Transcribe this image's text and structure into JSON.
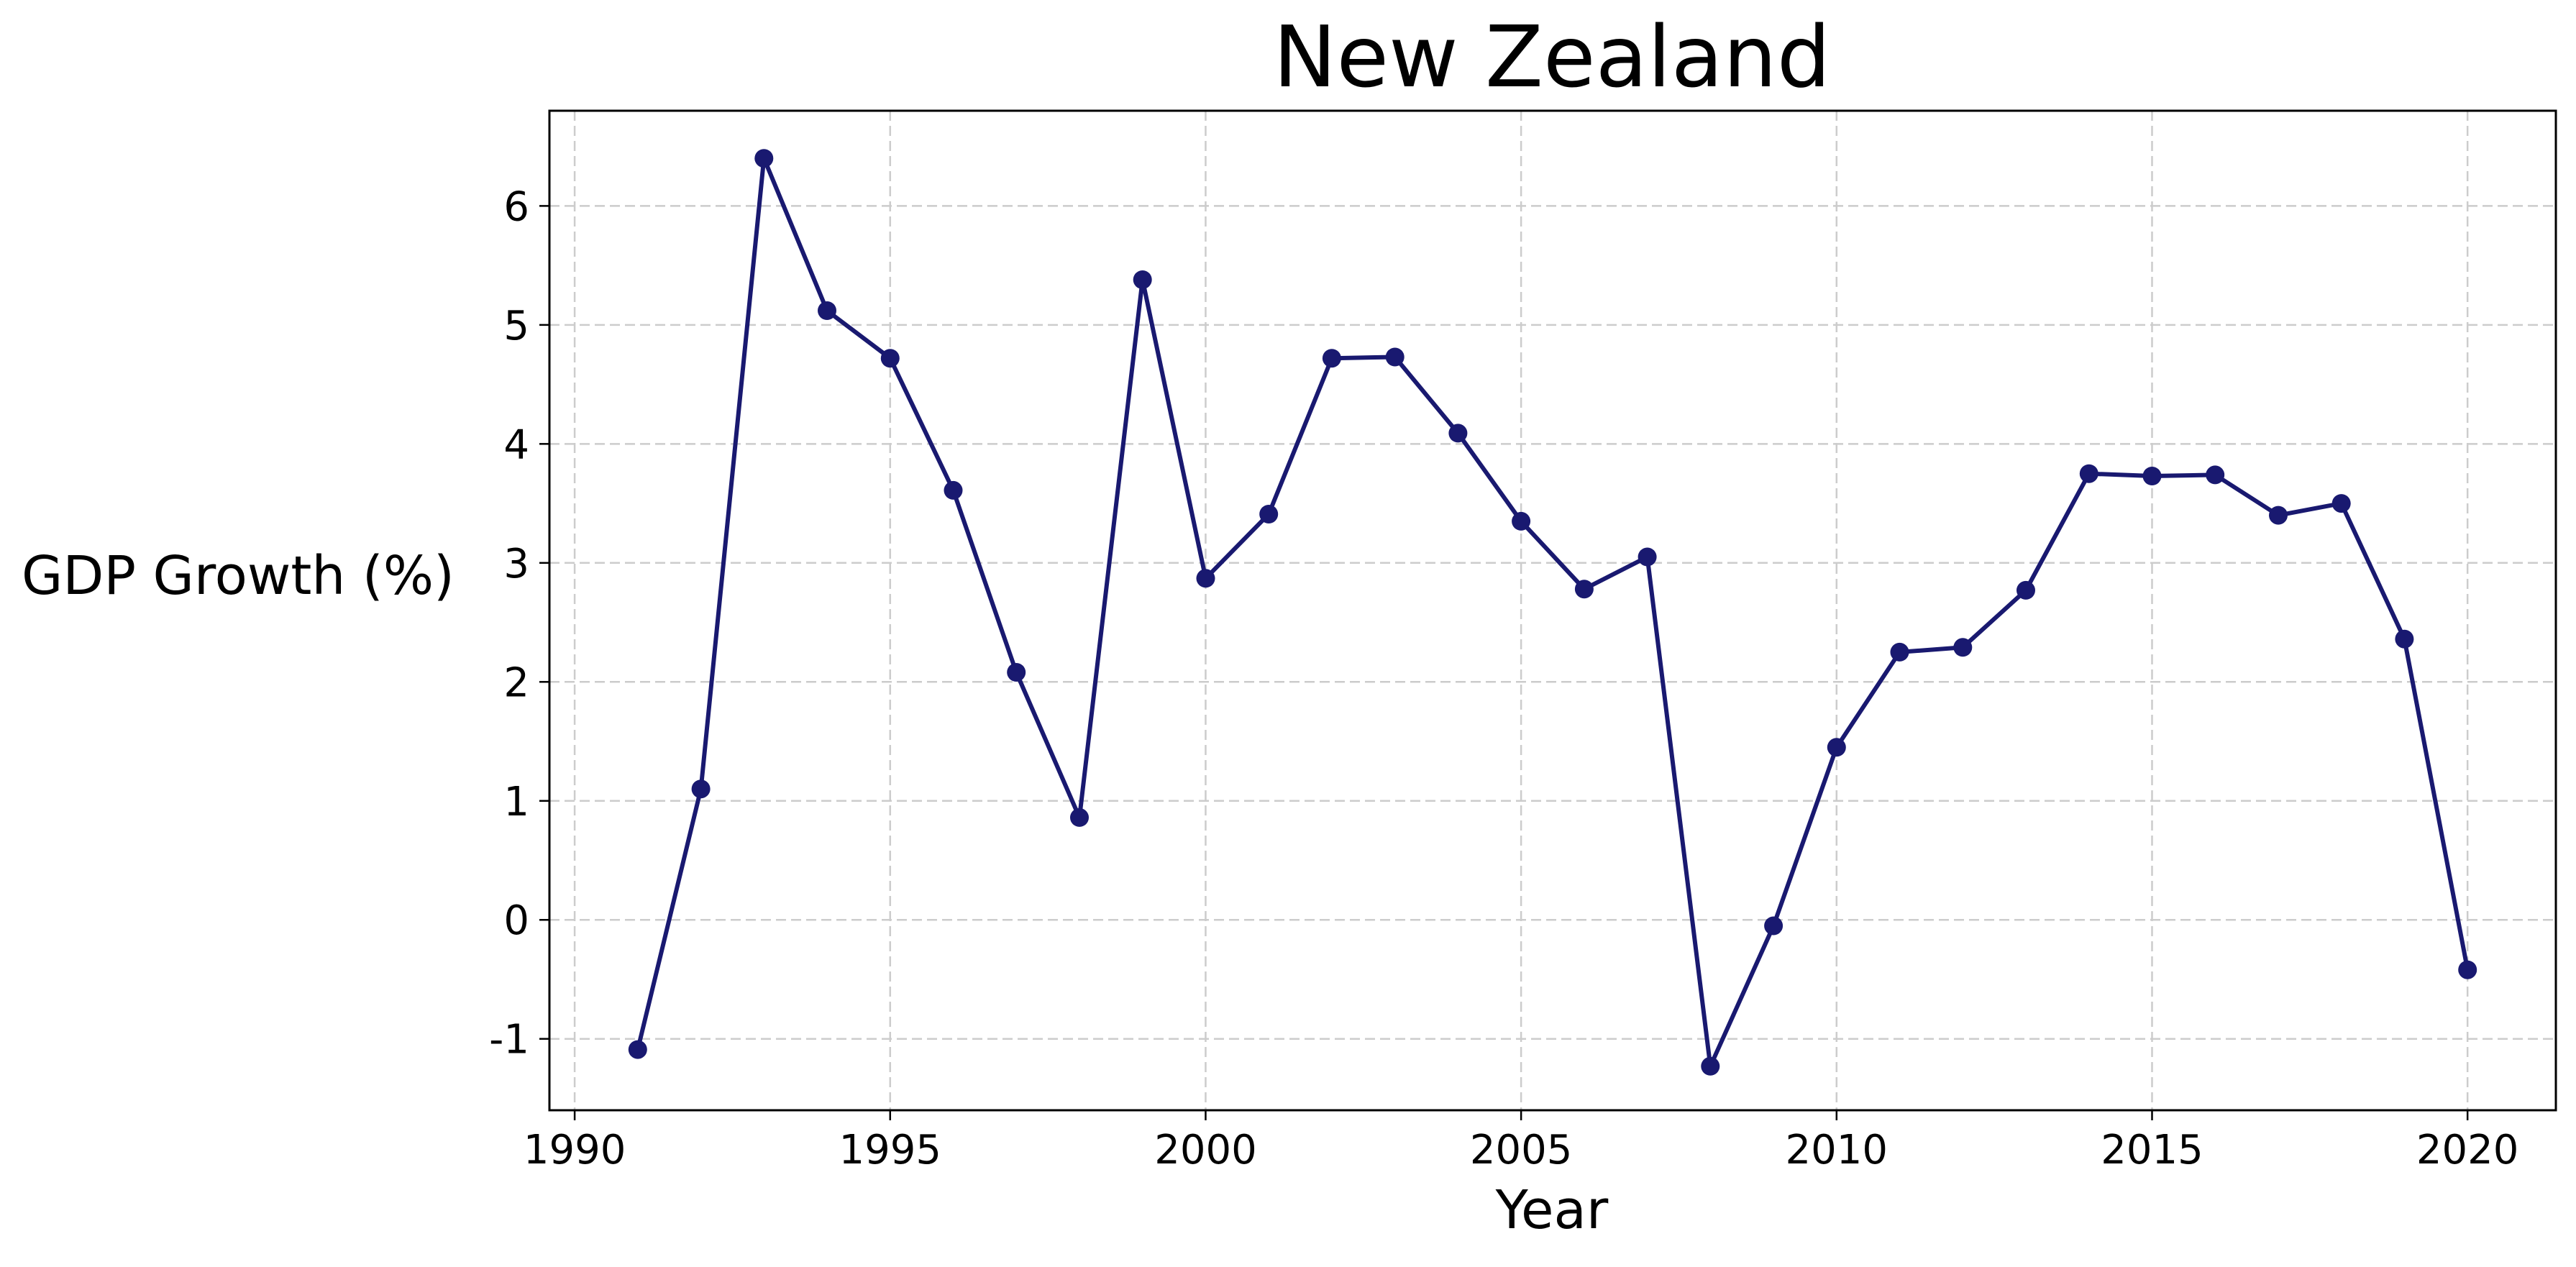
{
  "chart_data": {
    "type": "line",
    "title": "New Zealand",
    "xlabel": "Year",
    "ylabel": "GDP Growth (%)",
    "xlim": [
      1989.6,
      2021.4
    ],
    "ylim": [
      -1.6,
      6.8
    ],
    "x_ticks": [
      1990,
      1995,
      2000,
      2005,
      2010,
      2015,
      2020
    ],
    "y_ticks": [
      -1,
      0,
      1,
      2,
      3,
      4,
      5,
      6
    ],
    "grid": true,
    "legend": "none",
    "colors": {
      "line": "#191970"
    },
    "series": [
      {
        "x": [
          1991,
          1992,
          1993,
          1994,
          1995,
          1996,
          1997,
          1998,
          1999,
          2000,
          2001,
          2002,
          2003,
          2004,
          2005,
          2006,
          2007,
          2008,
          2009,
          2010,
          2011,
          2012,
          2013,
          2014,
          2015,
          2016,
          2017,
          2018,
          2019,
          2020
        ],
        "values": [
          -1.09,
          1.1,
          6.4,
          5.12,
          4.72,
          3.61,
          2.08,
          0.86,
          5.38,
          2.87,
          3.41,
          4.72,
          4.73,
          4.09,
          3.35,
          2.78,
          3.05,
          -1.23,
          -0.05,
          1.45,
          2.25,
          2.29,
          2.77,
          3.75,
          3.73,
          3.74,
          3.4,
          3.5,
          2.36,
          -0.42
        ]
      }
    ]
  }
}
